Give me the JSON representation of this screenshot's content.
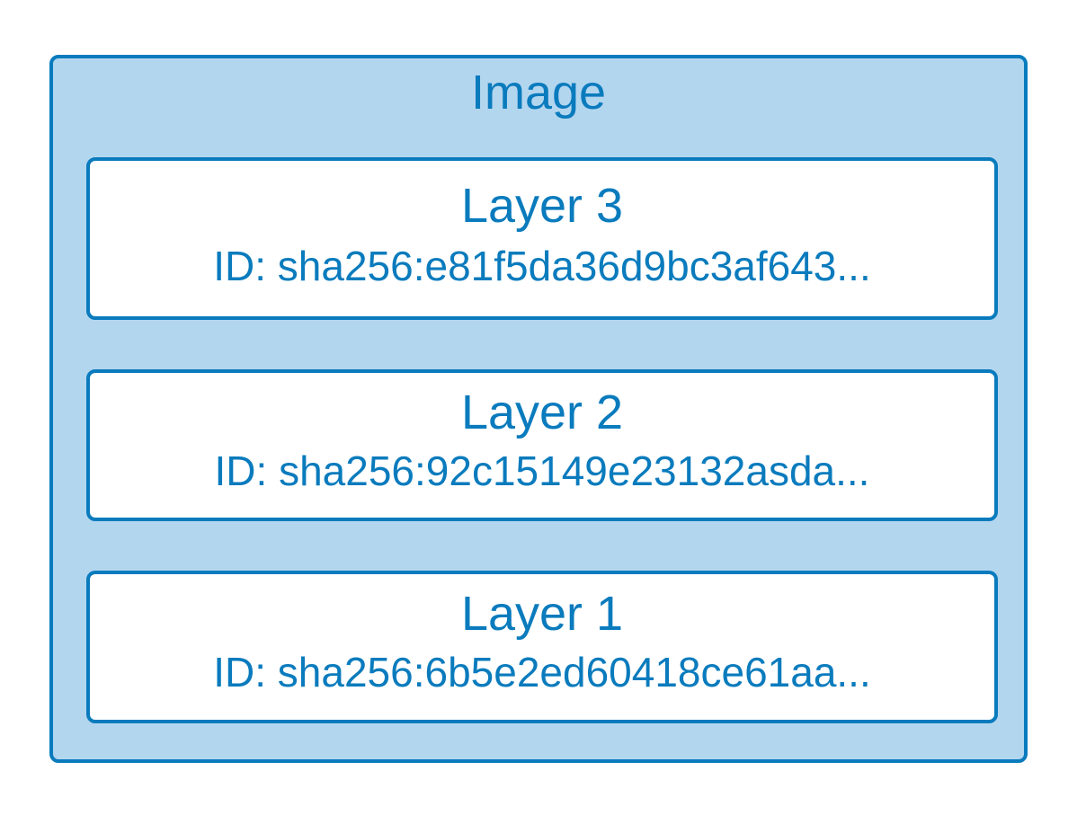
{
  "image": {
    "title": "Image",
    "layers": [
      {
        "name": "Layer 3",
        "id": "ID: sha256:e81f5da36d9bc3af643..."
      },
      {
        "name": "Layer 2",
        "id": "ID: sha256:92c15149e23132asda..."
      },
      {
        "name": "Layer 1",
        "id": "ID: sha256:6b5e2ed60418ce61aa..."
      }
    ]
  },
  "colors": {
    "accent": "#0a7bbd",
    "container_fill": "#b3d6ef",
    "layer_fill": "#ffffff"
  }
}
